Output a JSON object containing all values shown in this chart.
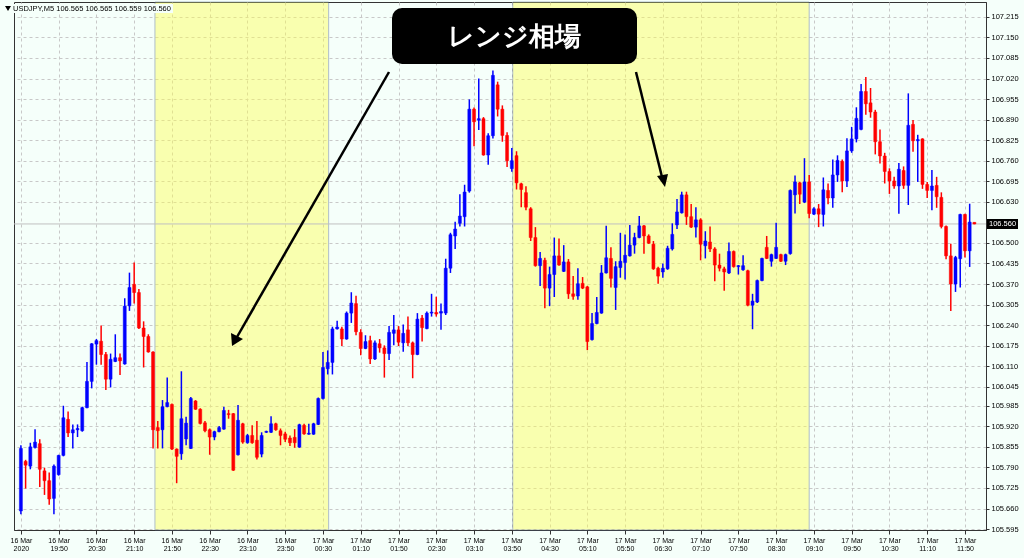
{
  "chart_data": {
    "type": "candlestick",
    "title": "USDJPY,M5  106.565 106.565 106.559 106.560",
    "annotations": [
      "レンジ相場"
    ],
    "x": [
      "2020-03-16T19:10",
      "2020-03-16T19:15",
      "2020-03-16T19:20",
      "2020-03-16T19:25",
      "2020-03-16T19:30",
      "2020-03-16T19:35",
      "2020-03-16T19:40",
      "2020-03-16T19:45",
      "2020-03-16T19:50",
      "2020-03-16T19:55",
      "2020-03-16T20:00",
      "2020-03-16T20:05",
      "2020-03-16T20:10",
      "2020-03-16T20:15",
      "2020-03-16T20:20",
      "2020-03-16T20:25",
      "2020-03-16T20:30",
      "2020-03-16T20:35",
      "2020-03-16T20:40",
      "2020-03-16T20:45",
      "2020-03-16T20:50",
      "2020-03-16T20:55",
      "2020-03-16T21:00",
      "2020-03-16T21:05",
      "2020-03-16T21:10",
      "2020-03-16T21:15",
      "2020-03-16T21:20",
      "2020-03-16T21:25",
      "2020-03-16T21:30",
      "2020-03-16T21:35",
      "2020-03-16T21:40",
      "2020-03-16T21:45",
      "2020-03-16T21:50",
      "2020-03-16T21:55",
      "2020-03-16T22:00",
      "2020-03-16T22:05",
      "2020-03-16T22:10",
      "2020-03-16T22:15",
      "2020-03-16T22:20",
      "2020-03-16T22:25",
      "2020-03-16T22:30",
      "2020-03-16T22:35",
      "2020-03-16T22:40",
      "2020-03-16T22:45",
      "2020-03-16T22:50",
      "2020-03-16T22:55",
      "2020-03-16T23:00",
      "2020-03-16T23:05",
      "2020-03-16T23:10",
      "2020-03-16T23:15",
      "2020-03-16T23:20",
      "2020-03-16T23:25",
      "2020-03-16T23:30",
      "2020-03-16T23:35",
      "2020-03-16T23:40",
      "2020-03-16T23:45",
      "2020-03-16T23:50",
      "2020-03-16T23:55",
      "2020-03-17T00:00",
      "2020-03-17T00:05",
      "2020-03-17T00:10",
      "2020-03-17T00:15",
      "2020-03-17T00:20",
      "2020-03-17T00:25",
      "2020-03-17T00:30",
      "2020-03-17T00:35",
      "2020-03-17T00:40",
      "2020-03-17T00:45",
      "2020-03-17T00:50",
      "2020-03-17T00:55",
      "2020-03-17T01:00",
      "2020-03-17T01:05",
      "2020-03-17T01:10",
      "2020-03-17T01:15",
      "2020-03-17T01:20",
      "2020-03-17T01:25",
      "2020-03-17T01:30",
      "2020-03-17T01:35",
      "2020-03-17T01:40",
      "2020-03-17T01:45",
      "2020-03-17T01:50",
      "2020-03-17T01:55",
      "2020-03-17T02:00",
      "2020-03-17T02:05",
      "2020-03-17T02:10",
      "2020-03-17T02:15",
      "2020-03-17T02:20",
      "2020-03-17T02:25",
      "2020-03-17T02:30",
      "2020-03-17T02:35",
      "2020-03-17T02:40",
      "2020-03-17T02:45",
      "2020-03-17T02:50",
      "2020-03-17T02:55",
      "2020-03-17T03:00",
      "2020-03-17T03:05",
      "2020-03-17T03:10",
      "2020-03-17T03:15",
      "2020-03-17T03:20",
      "2020-03-17T03:25",
      "2020-03-17T03:30",
      "2020-03-17T03:35",
      "2020-03-17T03:40",
      "2020-03-17T03:45",
      "2020-03-17T03:50",
      "2020-03-17T03:55",
      "2020-03-17T04:00",
      "2020-03-17T04:05",
      "2020-03-17T04:10",
      "2020-03-17T04:15",
      "2020-03-17T04:20",
      "2020-03-17T04:25",
      "2020-03-17T04:30",
      "2020-03-17T04:35",
      "2020-03-17T04:40",
      "2020-03-17T04:45",
      "2020-03-17T04:50",
      "2020-03-17T04:55",
      "2020-03-17T05:00",
      "2020-03-17T05:05",
      "2020-03-17T05:10",
      "2020-03-17T05:15",
      "2020-03-17T05:20",
      "2020-03-17T05:25",
      "2020-03-17T05:30",
      "2020-03-17T05:35",
      "2020-03-17T05:40",
      "2020-03-17T05:45",
      "2020-03-17T05:50",
      "2020-03-17T05:55",
      "2020-03-17T06:00",
      "2020-03-17T06:05",
      "2020-03-17T06:10",
      "2020-03-17T06:15",
      "2020-03-17T06:20",
      "2020-03-17T06:25",
      "2020-03-17T06:30",
      "2020-03-17T06:35",
      "2020-03-17T06:40",
      "2020-03-17T06:45",
      "2020-03-17T06:50",
      "2020-03-17T06:55",
      "2020-03-17T07:00",
      "2020-03-17T07:05",
      "2020-03-17T07:10",
      "2020-03-17T07:15",
      "2020-03-17T07:20",
      "2020-03-17T07:25",
      "2020-03-17T07:30",
      "2020-03-17T07:35",
      "2020-03-17T07:40",
      "2020-03-17T07:45",
      "2020-03-17T07:50",
      "2020-03-17T07:55",
      "2020-03-17T08:00",
      "2020-03-17T08:05",
      "2020-03-17T08:10",
      "2020-03-17T08:15",
      "2020-03-17T08:20",
      "2020-03-17T08:25",
      "2020-03-17T08:30",
      "2020-03-17T08:35",
      "2020-03-17T08:40",
      "2020-03-17T08:45",
      "2020-03-17T08:50",
      "2020-03-17T08:55",
      "2020-03-17T09:00",
      "2020-03-17T09:05",
      "2020-03-17T09:10",
      "2020-03-17T09:15",
      "2020-03-17T09:20",
      "2020-03-17T09:25",
      "2020-03-17T09:30",
      "2020-03-17T09:35",
      "2020-03-17T09:40",
      "2020-03-17T09:45",
      "2020-03-17T09:50",
      "2020-03-17T09:55",
      "2020-03-17T10:00",
      "2020-03-17T10:05",
      "2020-03-17T10:10",
      "2020-03-17T10:15",
      "2020-03-17T10:20",
      "2020-03-17T10:25",
      "2020-03-17T10:30",
      "2020-03-17T10:35",
      "2020-03-17T10:40",
      "2020-03-17T10:45",
      "2020-03-17T10:50",
      "2020-03-17T10:55",
      "2020-03-17T11:00",
      "2020-03-17T11:05",
      "2020-03-17T11:10",
      "2020-03-17T11:15",
      "2020-03-17T11:20",
      "2020-03-17T11:25",
      "2020-03-17T11:30",
      "2020-03-17T11:35",
      "2020-03-17T11:40",
      "2020-03-17T11:45",
      "2020-03-17T11:50",
      "2020-03-17T11:55",
      "2020-03-17T12:00"
    ],
    "ohlc": [
      [
        105.652,
        105.86,
        105.642,
        105.85
      ],
      [
        105.809,
        105.814,
        105.723,
        105.797
      ],
      [
        105.794,
        105.868,
        105.784,
        105.855
      ],
      [
        105.853,
        105.911,
        105.85,
        105.87
      ],
      [
        105.865,
        105.879,
        105.728,
        105.784
      ],
      [
        105.779,
        105.789,
        105.703,
        105.748
      ],
      [
        105.748,
        105.774,
        105.672,
        105.69
      ],
      [
        105.692,
        105.799,
        105.642,
        105.794
      ],
      [
        105.767,
        105.83,
        105.764,
        105.828
      ],
      [
        105.828,
        105.985,
        105.825,
        105.947
      ],
      [
        105.942,
        105.967,
        105.886,
        105.899
      ],
      [
        105.899,
        105.926,
        105.85,
        105.909
      ],
      [
        105.909,
        105.926,
        105.886,
        105.913
      ],
      [
        105.906,
        105.982,
        105.903,
        105.979
      ],
      [
        105.979,
        106.123,
        105.977,
        106.062
      ],
      [
        106.062,
        106.183,
        106.04,
        106.181
      ],
      [
        106.18,
        106.196,
        106.115,
        106.191
      ],
      [
        106.189,
        106.239,
        106.115,
        106.147
      ],
      [
        106.147,
        106.155,
        106.035,
        106.069
      ],
      [
        106.069,
        106.15,
        106.043,
        106.132
      ],
      [
        106.125,
        106.211,
        106.123,
        106.137
      ],
      [
        106.137,
        106.15,
        106.082,
        106.127
      ],
      [
        106.117,
        106.325,
        106.115,
        106.3
      ],
      [
        106.301,
        106.406,
        106.285,
        106.359
      ],
      [
        106.369,
        106.438,
        106.308,
        106.343
      ],
      [
        106.343,
        106.354,
        106.228,
        106.231
      ],
      [
        106.231,
        106.252,
        106.106,
        106.204
      ],
      [
        106.204,
        106.211,
        106.153,
        106.155
      ],
      [
        106.155,
        106.157,
        105.85,
        105.909
      ],
      [
        105.916,
        105.937,
        105.85,
        105.906
      ],
      [
        105.909,
        106.003,
        105.85,
        105.982
      ],
      [
        105.982,
        106.074,
        105.98,
        105.995
      ],
      [
        105.989,
        105.992,
        105.845,
        105.848
      ],
      [
        105.848,
        105.85,
        105.74,
        105.825
      ],
      [
        105.833,
        106.094,
        105.814,
        105.944
      ],
      [
        105.88,
        105.95,
        105.86,
        105.93
      ],
      [
        105.85,
        106.013,
        105.848,
        106.008
      ],
      [
        106.0,
        106.003,
        105.972,
        105.974
      ],
      [
        105.974,
        105.977,
        105.926,
        105.929
      ],
      [
        105.931,
        105.937,
        105.901,
        105.906
      ],
      [
        105.909,
        105.913,
        105.83,
        105.886
      ],
      [
        105.886,
        105.906,
        105.876,
        105.903
      ],
      [
        105.903,
        105.921,
        105.901,
        105.916
      ],
      [
        105.911,
        105.982,
        105.909,
        105.97
      ],
      [
        105.96,
        105.972,
        105.944,
        105.957
      ],
      [
        105.96,
        105.962,
        105.779,
        105.781
      ],
      [
        105.83,
        105.987,
        105.828,
        105.939
      ],
      [
        105.928,
        105.931,
        105.865,
        105.87
      ],
      [
        105.868,
        105.896,
        105.865,
        105.891
      ],
      [
        105.891,
        105.923,
        105.865,
        105.868
      ],
      [
        105.876,
        105.937,
        105.815,
        105.822
      ],
      [
        105.832,
        105.901,
        105.822,
        105.891
      ],
      [
        105.901,
        105.906,
        105.899,
        105.904
      ],
      [
        105.901,
        105.952,
        105.899,
        105.928
      ],
      [
        105.928,
        105.931,
        105.906,
        105.909
      ],
      [
        105.906,
        105.913,
        105.86,
        105.891
      ],
      [
        105.896,
        105.903,
        105.87,
        105.879
      ],
      [
        105.883,
        105.891,
        105.858,
        105.868
      ],
      [
        105.885,
        105.911,
        105.852,
        105.868
      ],
      [
        105.854,
        105.928,
        105.852,
        105.925
      ],
      [
        105.923,
        105.928,
        105.893,
        105.896
      ],
      [
        105.895,
        105.928,
        105.893,
        105.898
      ],
      [
        105.895,
        105.931,
        105.893,
        105.928
      ],
      [
        105.926,
        106.011,
        105.924,
        106.008
      ],
      [
        106.008,
        106.155,
        106.005,
        106.106
      ],
      [
        106.102,
        106.16,
        106.084,
        106.122
      ],
      [
        106.122,
        106.235,
        106.084,
        106.228
      ],
      [
        106.228,
        106.254,
        106.226,
        106.234
      ],
      [
        106.228,
        106.235,
        106.174,
        106.196
      ],
      [
        106.196,
        106.283,
        106.194,
        106.278
      ],
      [
        106.278,
        106.344,
        106.247,
        106.31
      ],
      [
        106.308,
        106.333,
        106.208,
        106.219
      ],
      [
        106.217,
        106.227,
        106.145,
        106.166
      ],
      [
        106.166,
        106.208,
        106.164,
        106.188
      ],
      [
        106.191,
        106.206,
        106.117,
        106.133
      ],
      [
        106.133,
        106.191,
        106.13,
        106.184
      ],
      [
        106.181,
        106.196,
        106.153,
        106.168
      ],
      [
        106.168,
        106.176,
        106.074,
        106.15
      ],
      [
        106.15,
        106.237,
        106.13,
        106.217
      ],
      [
        106.214,
        106.272,
        106.176,
        106.225
      ],
      [
        106.225,
        106.237,
        106.174,
        106.186
      ],
      [
        106.184,
        106.242,
        106.156,
        106.214
      ],
      [
        106.225,
        106.267,
        106.174,
        106.184
      ],
      [
        106.184,
        106.188,
        106.072,
        106.147
      ],
      [
        106.147,
        106.278,
        106.145,
        106.259
      ],
      [
        106.262,
        106.272,
        106.188,
        106.232
      ],
      [
        106.229,
        106.283,
        106.227,
        106.278
      ],
      [
        106.278,
        106.339,
        106.267,
        106.281
      ],
      [
        106.28,
        106.33,
        106.267,
        106.275
      ],
      [
        106.278,
        106.308,
        106.225,
        106.283
      ],
      [
        106.278,
        106.45,
        106.272,
        106.42
      ],
      [
        106.42,
        106.532,
        106.405,
        106.526
      ],
      [
        106.522,
        106.567,
        106.481,
        106.544
      ],
      [
        106.562,
        106.654,
        106.552,
        106.585
      ],
      [
        106.583,
        106.684,
        106.552,
        106.661
      ],
      [
        106.664,
        106.954,
        106.659,
        106.923
      ],
      [
        106.923,
        106.928,
        106.806,
        106.883
      ],
      [
        106.888,
        107.02,
        106.857,
        106.893
      ],
      [
        106.893,
        106.898,
        106.776,
        106.778
      ],
      [
        106.778,
        106.847,
        106.747,
        106.839
      ],
      [
        106.839,
        107.045,
        106.83,
        107.03
      ],
      [
        107.0,
        107.01,
        106.9,
        106.923
      ],
      [
        106.923,
        106.935,
        106.82,
        106.84
      ],
      [
        106.84,
        106.85,
        106.74,
        106.76
      ],
      [
        106.735,
        106.8,
        106.725,
        106.76
      ],
      [
        106.776,
        106.79,
        106.669,
        106.69
      ],
      [
        106.687,
        106.69,
        106.613,
        106.669
      ],
      [
        106.659,
        106.679,
        106.603,
        106.613
      ],
      [
        106.608,
        106.613,
        106.506,
        106.517
      ],
      [
        106.517,
        106.55,
        106.425,
        106.428
      ],
      [
        106.428,
        106.471,
        106.364,
        106.451
      ],
      [
        106.445,
        106.453,
        106.293,
        106.357
      ],
      [
        106.357,
        106.425,
        106.3,
        106.4
      ],
      [
        106.4,
        106.517,
        106.329,
        106.459
      ],
      [
        106.459,
        106.514,
        106.428,
        106.43
      ],
      [
        106.41,
        106.493,
        106.408,
        106.44
      ],
      [
        106.44,
        106.449,
        106.323,
        106.339
      ],
      [
        106.339,
        106.395,
        106.32,
        106.331
      ],
      [
        106.332,
        106.42,
        106.32,
        106.371
      ],
      [
        106.372,
        106.392,
        106.354,
        106.357
      ],
      [
        106.361,
        106.364,
        106.161,
        106.188
      ],
      [
        106.194,
        106.278,
        106.191,
        106.245
      ],
      [
        106.245,
        106.329,
        106.243,
        106.28
      ],
      [
        106.278,
        106.43,
        106.276,
        106.405
      ],
      [
        106.405,
        106.554,
        106.403,
        106.453
      ],
      [
        106.451,
        106.486,
        106.359,
        106.388
      ],
      [
        106.359,
        106.442,
        106.288,
        106.425
      ],
      [
        106.422,
        106.532,
        106.39,
        106.442
      ],
      [
        106.438,
        106.527,
        106.384,
        106.461
      ],
      [
        106.459,
        106.557,
        106.457,
        106.493
      ],
      [
        106.493,
        106.532,
        106.466,
        106.517
      ],
      [
        106.517,
        106.585,
        106.515,
        106.554
      ],
      [
        106.554,
        106.557,
        106.466,
        106.522
      ],
      [
        106.522,
        106.527,
        106.497,
        106.499
      ],
      [
        106.496,
        106.506,
        106.415,
        106.418
      ],
      [
        106.42,
        106.425,
        106.371,
        106.395
      ],
      [
        106.408,
        106.435,
        106.39,
        106.42
      ],
      [
        106.418,
        106.491,
        106.415,
        106.483
      ],
      [
        106.481,
        106.562,
        106.476,
        106.527
      ],
      [
        106.557,
        106.639,
        106.544,
        106.598
      ],
      [
        106.595,
        106.662,
        106.593,
        106.652
      ],
      [
        106.652,
        106.662,
        106.557,
        106.583
      ],
      [
        106.583,
        106.623,
        106.547,
        106.55
      ],
      [
        106.55,
        106.613,
        106.517,
        106.573
      ],
      [
        106.573,
        106.578,
        106.445,
        106.496
      ],
      [
        106.491,
        106.537,
        106.451,
        106.506
      ],
      [
        106.503,
        106.552,
        106.471,
        106.481
      ],
      [
        106.481,
        106.486,
        106.379,
        106.43
      ],
      [
        106.43,
        106.466,
        106.41,
        106.42
      ],
      [
        106.418,
        106.425,
        106.349,
        106.408
      ],
      [
        106.405,
        106.501,
        106.402,
        106.473
      ],
      [
        106.473,
        106.476,
        106.422,
        106.425
      ],
      [
        106.425,
        106.43,
        106.4,
        106.428
      ],
      [
        106.415,
        106.461,
        106.412,
        106.428
      ],
      [
        106.412,
        106.415,
        106.3,
        106.303
      ],
      [
        106.303,
        106.339,
        106.227,
        106.316
      ],
      [
        106.313,
        106.384,
        106.31,
        106.381
      ],
      [
        106.381,
        106.453,
        106.379,
        106.451
      ],
      [
        106.486,
        106.522,
        106.449,
        106.451
      ],
      [
        106.442,
        106.466,
        106.425,
        106.463
      ],
      [
        106.451,
        106.564,
        106.449,
        106.486
      ],
      [
        106.463,
        106.466,
        106.44,
        106.442
      ],
      [
        106.442,
        106.466,
        106.43,
        106.463
      ],
      [
        106.466,
        106.669,
        106.463,
        106.666
      ],
      [
        106.652,
        106.713,
        106.593,
        106.693
      ],
      [
        106.69,
        106.693,
        106.623,
        106.654
      ],
      [
        106.629,
        106.768,
        106.626,
        106.693
      ],
      [
        106.693,
        106.715,
        106.578,
        106.593
      ],
      [
        106.591,
        106.613,
        106.588,
        106.608
      ],
      [
        106.608,
        106.623,
        106.55,
        106.591
      ],
      [
        106.59,
        106.707,
        106.552,
        106.668
      ],
      [
        106.666,
        106.688,
        106.622,
        106.642
      ],
      [
        106.642,
        106.764,
        106.611,
        106.715
      ],
      [
        106.715,
        106.777,
        106.693,
        106.761
      ],
      [
        106.758,
        106.764,
        106.66,
        106.696
      ],
      [
        106.696,
        106.831,
        106.677,
        106.791
      ],
      [
        106.791,
        106.867,
        106.785,
        106.829
      ],
      [
        106.829,
        106.929,
        106.818,
        106.894
      ],
      [
        106.859,
        107.003,
        106.856,
        106.979
      ],
      [
        106.979,
        107.025,
        106.905,
        106.94
      ],
      [
        106.943,
        106.99,
        106.896,
        106.914
      ],
      [
        106.914,
        106.921,
        106.78,
        106.82
      ],
      [
        106.82,
        106.859,
        106.751,
        106.775
      ],
      [
        106.775,
        106.785,
        106.688,
        106.726
      ],
      [
        106.726,
        106.736,
        106.655,
        106.696
      ],
      [
        106.696,
        106.709,
        106.671,
        106.68
      ],
      [
        106.68,
        106.753,
        106.592,
        106.733
      ],
      [
        106.729,
        106.742,
        106.671,
        106.682
      ],
      [
        106.682,
        106.973,
        106.62,
        106.872
      ],
      [
        106.875,
        106.889,
        106.788,
        106.823
      ],
      [
        106.823,
        106.842,
        106.693,
        106.827
      ],
      [
        106.829,
        106.831,
        106.671,
        106.685
      ],
      [
        106.685,
        106.693,
        106.642,
        106.666
      ],
      [
        106.666,
        106.731,
        106.603,
        106.68
      ],
      [
        106.682,
        106.709,
        106.611,
        106.646
      ],
      [
        106.644,
        106.66,
        106.546,
        106.552
      ],
      [
        106.552,
        106.555,
        106.448,
        106.459
      ],
      [
        106.459,
        106.497,
        106.285,
        106.37
      ],
      [
        106.37,
        106.459,
        106.345,
        106.454
      ],
      [
        106.45,
        106.592,
        106.359,
        106.59
      ],
      [
        106.59,
        106.592,
        106.454,
        106.475
      ],
      [
        106.475,
        106.624,
        106.424,
        106.566
      ],
      [
        106.565,
        106.565,
        106.559,
        106.56
      ]
    ],
    "colors": [
      "#0000ff",
      "#ff0000",
      "#0000ff",
      "#0000ff",
      "#ff0000",
      "#ff0000",
      "#ff0000",
      "#0000ff",
      "#0000ff",
      "#0000ff",
      "#ff0000",
      "#0000ff",
      "#0000ff",
      "#0000ff",
      "#0000ff",
      "#0000ff",
      "#0000ff",
      "#ff0000",
      "#ff0000",
      "#0000ff",
      "#0000ff",
      "#ff0000",
      "#0000ff",
      "#0000ff",
      "#ff0000",
      "#ff0000",
      "#ff0000",
      "#ff0000",
      "#ff0000",
      "#ff0000",
      "#0000ff",
      "#0000ff",
      "#ff0000",
      "#ff0000",
      "#0000ff",
      "#0000ff",
      "#0000ff",
      "#ff0000",
      "#ff0000",
      "#ff0000",
      "#ff0000",
      "#0000ff",
      "#0000ff",
      "#0000ff",
      "#ff0000",
      "#ff0000",
      "#0000ff",
      "#ff0000",
      "#0000ff",
      "#ff0000",
      "#ff0000",
      "#0000ff",
      "#0000ff",
      "#0000ff",
      "#ff0000",
      "#ff0000",
      "#ff0000",
      "#ff0000",
      "#ff0000",
      "#0000ff",
      "#ff0000",
      "#0000ff",
      "#0000ff",
      "#0000ff",
      "#0000ff",
      "#0000ff",
      "#0000ff",
      "#0000ff",
      "#ff0000",
      "#0000ff",
      "#0000ff",
      "#ff0000",
      "#ff0000",
      "#0000ff",
      "#ff0000",
      "#0000ff",
      "#ff0000",
      "#ff0000",
      "#0000ff",
      "#0000ff",
      "#ff0000",
      "#0000ff",
      "#ff0000",
      "#ff0000",
      "#0000ff",
      "#ff0000",
      "#0000ff",
      "#0000ff",
      "#ff0000",
      "#0000ff",
      "#0000ff",
      "#0000ff",
      "#0000ff",
      "#0000ff",
      "#0000ff",
      "#0000ff",
      "#ff0000",
      "#0000ff",
      "#ff0000",
      "#0000ff",
      "#0000ff",
      "#ff0000",
      "#ff0000",
      "#ff0000",
      "#0000ff",
      "#ff0000",
      "#ff0000",
      "#ff0000",
      "#ff0000",
      "#ff0000",
      "#0000ff",
      "#ff0000",
      "#0000ff",
      "#0000ff",
      "#ff0000",
      "#0000ff",
      "#ff0000",
      "#ff0000",
      "#0000ff",
      "#ff0000",
      "#ff0000",
      "#0000ff",
      "#0000ff",
      "#0000ff",
      "#0000ff",
      "#ff0000",
      "#0000ff",
      "#0000ff",
      "#0000ff",
      "#0000ff",
      "#0000ff",
      "#0000ff",
      "#ff0000",
      "#ff0000",
      "#ff0000",
      "#ff0000",
      "#0000ff",
      "#0000ff",
      "#0000ff",
      "#0000ff",
      "#0000ff",
      "#ff0000",
      "#ff0000",
      "#0000ff",
      "#ff0000",
      "#0000ff",
      "#ff0000",
      "#ff0000",
      "#ff0000",
      "#ff0000",
      "#0000ff",
      "#ff0000",
      "#0000ff",
      "#0000ff",
      "#ff0000",
      "#0000ff",
      "#0000ff",
      "#0000ff",
      "#ff0000",
      "#0000ff",
      "#0000ff",
      "#ff0000",
      "#0000ff",
      "#0000ff",
      "#0000ff",
      "#ff0000",
      "#0000ff",
      "#ff0000",
      "#0000ff",
      "#ff0000",
      "#0000ff",
      "#ff0000",
      "#0000ff",
      "#0000ff",
      "#ff0000",
      "#0000ff",
      "#0000ff",
      "#0000ff",
      "#0000ff",
      "#ff0000",
      "#ff0000",
      "#ff0000",
      "#ff0000",
      "#ff0000",
      "#ff0000",
      "#ff0000",
      "#0000ff",
      "#ff0000",
      "#0000ff",
      "#ff0000",
      "#0000ff",
      "#ff0000",
      "#ff0000",
      "#0000ff",
      "#ff0000",
      "#ff0000",
      "#ff0000",
      "#ff0000",
      "#0000ff",
      "#0000ff",
      "#ff0000",
      "#0000ff",
      "#ff0000"
    ],
    "xlim": [
      "2020-03-16T19:08",
      "2020-03-17T12:07"
    ],
    "xticks": [
      {
        "value": "2020-03-16T19:10",
        "label": "16 Mar 2020"
      },
      {
        "value": "2020-03-16T19:50",
        "label": "16 Mar 19:50"
      },
      {
        "value": "2020-03-16T20:30",
        "label": "16 Mar 20:30"
      },
      {
        "value": "2020-03-16T21:10",
        "label": "16 Mar 21:10"
      },
      {
        "value": "2020-03-16T21:50",
        "label": "16 Mar 21:50"
      },
      {
        "value": "2020-03-16T22:30",
        "label": "16 Mar 22:30"
      },
      {
        "value": "2020-03-16T23:10",
        "label": "16 Mar 23:10"
      },
      {
        "value": "2020-03-16T23:50",
        "label": "16 Mar 23:50"
      },
      {
        "value": "2020-03-17T00:30",
        "label": "17 Mar 00:30"
      },
      {
        "value": "2020-03-17T01:10",
        "label": "17 Mar 01:10"
      },
      {
        "value": "2020-03-17T01:50",
        "label": "17 Mar 01:50"
      },
      {
        "value": "2020-03-17T02:30",
        "label": "17 Mar 02:30"
      },
      {
        "value": "2020-03-17T03:10",
        "label": "17 Mar 03:10"
      },
      {
        "value": "2020-03-17T03:50",
        "label": "17 Mar 03:50"
      },
      {
        "value": "2020-03-17T04:30",
        "label": "17 Mar 04:30"
      },
      {
        "value": "2020-03-17T05:10",
        "label": "17 Mar 05:10"
      },
      {
        "value": "2020-03-17T05:50",
        "label": "17 Mar 05:50"
      },
      {
        "value": "2020-03-17T06:30",
        "label": "17 Mar 06:30"
      },
      {
        "value": "2020-03-17T07:10",
        "label": "17 Mar 07:10"
      },
      {
        "value": "2020-03-17T07:50",
        "label": "17 Mar 07:50"
      },
      {
        "value": "2020-03-17T08:30",
        "label": "17 Mar 08:30"
      },
      {
        "value": "2020-03-17T09:10",
        "label": "17 Mar 09:10"
      },
      {
        "value": "2020-03-17T09:50",
        "label": "17 Mar 09:50"
      },
      {
        "value": "2020-03-17T10:30",
        "label": "17 Mar 10:30"
      },
      {
        "value": "2020-03-17T11:10",
        "label": "17 Mar 11:10"
      },
      {
        "value": "2020-03-17T11:50",
        "label": "17 Mar 11:50"
      }
    ],
    "ylim": [
      105.592,
      107.262
    ],
    "yticks": [
      107.215,
      {
        "value": 107.15,
        "label": "107.150"
      },
      107.085,
      {
        "value": 107.02,
        "label": "107.020"
      },
      106.955,
      {
        "value": 106.89,
        "label": "106.890"
      },
      106.825,
      {
        "value": 106.76,
        "label": "106.760"
      },
      106.695,
      {
        "value": 106.63,
        "label": "106.630"
      },
      {
        "value": 106.5,
        "label": "106.500"
      },
      106.435,
      {
        "value": 106.37,
        "label": "106.370"
      },
      106.305,
      {
        "value": 106.24,
        "label": "106.240"
      },
      106.175,
      {
        "value": 106.11,
        "label": "106.110"
      },
      106.045,
      105.985,
      {
        "value": 105.92,
        "label": "105.920"
      },
      105.855,
      {
        "value": 105.79,
        "label": "105.790"
      },
      105.725,
      {
        "value": 105.66,
        "label": "105.660"
      },
      105.595
    ],
    "grid": true,
    "ref_lines": [
      {
        "axis": "y",
        "value": 106.56,
        "label": "106.560",
        "color": "#c0c0c0"
      }
    ],
    "bands": [
      {
        "axis": "x",
        "from": "2020-03-16T21:32",
        "to": "2020-03-17T00:36",
        "color": "#ffff55"
      },
      {
        "axis": "x",
        "from": "2020-03-17T03:51",
        "to": "2020-03-17T09:05",
        "color": "#ffff55"
      }
    ]
  }
}
